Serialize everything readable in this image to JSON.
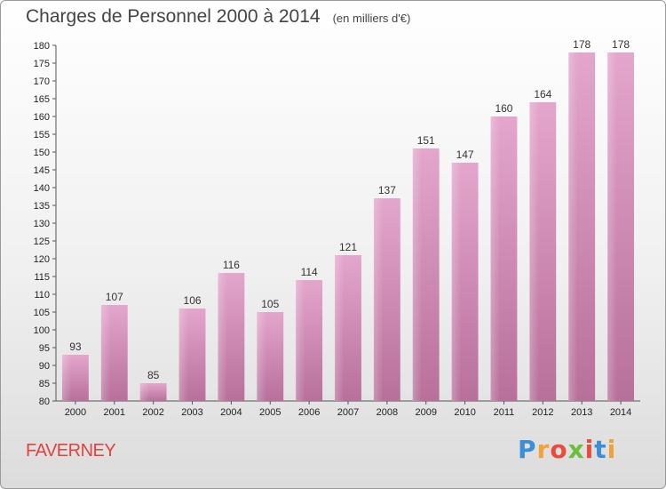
{
  "chart_data": {
    "type": "bar",
    "title": "Charges de Personnel 2000 à 2014",
    "subtitle": "(en milliers d'€)",
    "categories": [
      "2000",
      "2001",
      "2002",
      "2003",
      "2004",
      "2005",
      "2006",
      "2007",
      "2008",
      "2009",
      "2010",
      "2011",
      "2012",
      "2013",
      "2014"
    ],
    "values": [
      93,
      107,
      85,
      106,
      116,
      105,
      114,
      121,
      137,
      151,
      147,
      160,
      164,
      178,
      178
    ],
    "ylim": [
      80,
      180
    ],
    "yticks": [
      80,
      85,
      90,
      95,
      100,
      105,
      110,
      115,
      120,
      125,
      130,
      135,
      140,
      145,
      150,
      155,
      160,
      165,
      170,
      175,
      180
    ],
    "grid": false,
    "bar_color": "#d88fba",
    "xlabel": "",
    "ylabel": ""
  },
  "footer": {
    "town": "FAVERNEY",
    "logo_letters": [
      "P",
      "r",
      "o",
      "x",
      "i",
      "t",
      "i"
    ],
    "logo_colors": [
      "#3a8fd6",
      "#f0a23a",
      "#e94b3c",
      "#6bbf3a",
      "#e94b3c",
      "#3a8fd6",
      "#f0a23a"
    ]
  }
}
